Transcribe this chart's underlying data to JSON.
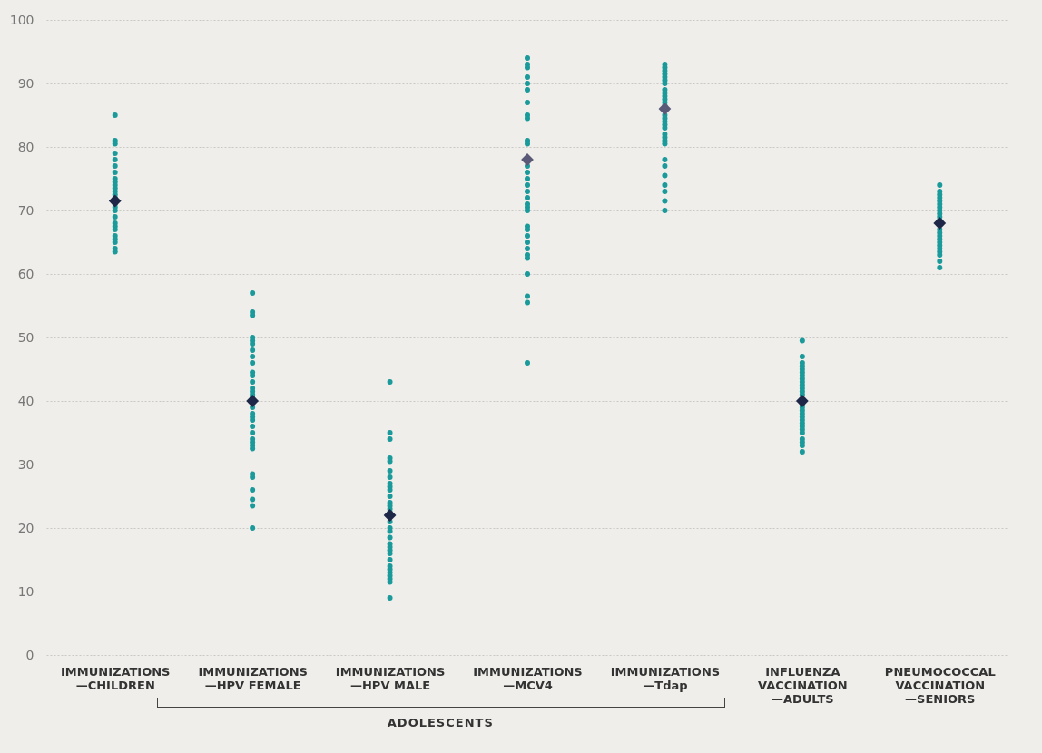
{
  "chart_data": {
    "type": "scatter",
    "categories": [
      "IMMUNIZATIONS —CHILDREN",
      "IMMUNIZATIONS —HPV FEMALE",
      "IMMUNIZATIONS —HPV MALE",
      "IMMUNIZATIONS —MCV4",
      "IMMUNIZATIONS —Tdap",
      "INFLUENZA VACCINATION —ADULTS",
      "PNEUMOCOCCAL VACCINATION —SENIORS"
    ],
    "series": [
      {
        "type": "scatter",
        "marker": "circle",
        "color": "#1a9a9a",
        "x": [
          "IMMUNIZATIONS —CHILDREN",
          "IMMUNIZATIONS —CHILDREN",
          "IMMUNIZATIONS —CHILDREN",
          "IMMUNIZATIONS —CHILDREN",
          "IMMUNIZATIONS —CHILDREN",
          "IMMUNIZATIONS —CHILDREN",
          "IMMUNIZATIONS —CHILDREN",
          "IMMUNIZATIONS —CHILDREN",
          "IMMUNIZATIONS —CHILDREN",
          "IMMUNIZATIONS —CHILDREN",
          "IMMUNIZATIONS —CHILDREN",
          "IMMUNIZATIONS —CHILDREN",
          "IMMUNIZATIONS —CHILDREN",
          "IMMUNIZATIONS —CHILDREN",
          "IMMUNIZATIONS —CHILDREN",
          "IMMUNIZATIONS —CHILDREN",
          "IMMUNIZATIONS —CHILDREN",
          "IMMUNIZATIONS —CHILDREN",
          "IMMUNIZATIONS —CHILDREN",
          "IMMUNIZATIONS —CHILDREN",
          "IMMUNIZATIONS —CHILDREN",
          "IMMUNIZATIONS —CHILDREN",
          "IMMUNIZATIONS —CHILDREN",
          "IMMUNIZATIONS —CHILDREN",
          "IMMUNIZATIONS —CHILDREN",
          "IMMUNIZATIONS —CHILDREN",
          "IMMUNIZATIONS —HPV FEMALE",
          "IMMUNIZATIONS —HPV FEMALE",
          "IMMUNIZATIONS —HPV FEMALE",
          "IMMUNIZATIONS —HPV FEMALE",
          "IMMUNIZATIONS —HPV FEMALE",
          "IMMUNIZATIONS —HPV FEMALE",
          "IMMUNIZATIONS —HPV FEMALE",
          "IMMUNIZATIONS —HPV FEMALE",
          "IMMUNIZATIONS —HPV FEMALE",
          "IMMUNIZATIONS —HPV FEMALE",
          "IMMUNIZATIONS —HPV FEMALE",
          "IMMUNIZATIONS —HPV FEMALE",
          "IMMUNIZATIONS —HPV FEMALE",
          "IMMUNIZATIONS —HPV FEMALE",
          "IMMUNIZATIONS —HPV FEMALE",
          "IMMUNIZATIONS —HPV FEMALE",
          "IMMUNIZATIONS —HPV FEMALE",
          "IMMUNIZATIONS —HPV FEMALE",
          "IMMUNIZATIONS —HPV FEMALE",
          "IMMUNIZATIONS —HPV FEMALE",
          "IMMUNIZATIONS —HPV FEMALE",
          "IMMUNIZATIONS —HPV FEMALE",
          "IMMUNIZATIONS —HPV FEMALE",
          "IMMUNIZATIONS —HPV FEMALE",
          "IMMUNIZATIONS —HPV FEMALE",
          "IMMUNIZATIONS —HPV FEMALE",
          "IMMUNIZATIONS —HPV FEMALE",
          "IMMUNIZATIONS —HPV FEMALE",
          "IMMUNIZATIONS —HPV FEMALE",
          "IMMUNIZATIONS —HPV FEMALE",
          "IMMUNIZATIONS —HPV FEMALE",
          "IMMUNIZATIONS —HPV FEMALE",
          "IMMUNIZATIONS —HPV FEMALE",
          "IMMUNIZATIONS —HPV MALE",
          "IMMUNIZATIONS —HPV MALE",
          "IMMUNIZATIONS —HPV MALE",
          "IMMUNIZATIONS —HPV MALE",
          "IMMUNIZATIONS —HPV MALE",
          "IMMUNIZATIONS —HPV MALE",
          "IMMUNIZATIONS —HPV MALE",
          "IMMUNIZATIONS —HPV MALE",
          "IMMUNIZATIONS —HPV MALE",
          "IMMUNIZATIONS —HPV MALE",
          "IMMUNIZATIONS —HPV MALE",
          "IMMUNIZATIONS —HPV MALE",
          "IMMUNIZATIONS —HPV MALE",
          "IMMUNIZATIONS —HPV MALE",
          "IMMUNIZATIONS —HPV MALE",
          "IMMUNIZATIONS —HPV MALE",
          "IMMUNIZATIONS —HPV MALE",
          "IMMUNIZATIONS —HPV MALE",
          "IMMUNIZATIONS —HPV MALE",
          "IMMUNIZATIONS —HPV MALE",
          "IMMUNIZATIONS —HPV MALE",
          "IMMUNIZATIONS —HPV MALE",
          "IMMUNIZATIONS —HPV MALE",
          "IMMUNIZATIONS —HPV MALE",
          "IMMUNIZATIONS —HPV MALE",
          "IMMUNIZATIONS —HPV MALE",
          "IMMUNIZATIONS —HPV MALE",
          "IMMUNIZATIONS —HPV MALE",
          "IMMUNIZATIONS —HPV MALE",
          "IMMUNIZATIONS —HPV MALE",
          "IMMUNIZATIONS —HPV MALE",
          "IMMUNIZATIONS —MCV4",
          "IMMUNIZATIONS —MCV4",
          "IMMUNIZATIONS —MCV4",
          "IMMUNIZATIONS —MCV4",
          "IMMUNIZATIONS —MCV4",
          "IMMUNIZATIONS —MCV4",
          "IMMUNIZATIONS —MCV4",
          "IMMUNIZATIONS —MCV4",
          "IMMUNIZATIONS —MCV4",
          "IMMUNIZATIONS —MCV4",
          "IMMUNIZATIONS —MCV4",
          "IMMUNIZATIONS —MCV4",
          "IMMUNIZATIONS —MCV4",
          "IMMUNIZATIONS —MCV4",
          "IMMUNIZATIONS —MCV4",
          "IMMUNIZATIONS —MCV4",
          "IMMUNIZATIONS —MCV4",
          "IMMUNIZATIONS —MCV4",
          "IMMUNIZATIONS —MCV4",
          "IMMUNIZATIONS —MCV4",
          "IMMUNIZATIONS —MCV4",
          "IMMUNIZATIONS —MCV4",
          "IMMUNIZATIONS —MCV4",
          "IMMUNIZATIONS —MCV4",
          "IMMUNIZATIONS —MCV4",
          "IMMUNIZATIONS —MCV4",
          "IMMUNIZATIONS —MCV4",
          "IMMUNIZATIONS —MCV4",
          "IMMUNIZATIONS —MCV4",
          "IMMUNIZATIONS —MCV4",
          "IMMUNIZATIONS —MCV4",
          "IMMUNIZATIONS —MCV4",
          "IMMUNIZATIONS —Tdap",
          "IMMUNIZATIONS —Tdap",
          "IMMUNIZATIONS —Tdap",
          "IMMUNIZATIONS —Tdap",
          "IMMUNIZATIONS —Tdap",
          "IMMUNIZATIONS —Tdap",
          "IMMUNIZATIONS —Tdap",
          "IMMUNIZATIONS —Tdap",
          "IMMUNIZATIONS —Tdap",
          "IMMUNIZATIONS —Tdap",
          "IMMUNIZATIONS —Tdap",
          "IMMUNIZATIONS —Tdap",
          "IMMUNIZATIONS —Tdap",
          "IMMUNIZATIONS —Tdap",
          "IMMUNIZATIONS —Tdap",
          "IMMUNIZATIONS —Tdap",
          "IMMUNIZATIONS —Tdap",
          "IMMUNIZATIONS —Tdap",
          "IMMUNIZATIONS —Tdap",
          "IMMUNIZATIONS —Tdap",
          "IMMUNIZATIONS —Tdap",
          "IMMUNIZATIONS —Tdap",
          "IMMUNIZATIONS —Tdap",
          "IMMUNIZATIONS —Tdap",
          "IMMUNIZATIONS —Tdap",
          "IMMUNIZATIONS —Tdap",
          "IMMUNIZATIONS —Tdap",
          "IMMUNIZATIONS —Tdap",
          "IMMUNIZATIONS —Tdap",
          "INFLUENZA VACCINATION —ADULTS",
          "INFLUENZA VACCINATION —ADULTS",
          "INFLUENZA VACCINATION —ADULTS",
          "INFLUENZA VACCINATION —ADULTS",
          "INFLUENZA VACCINATION —ADULTS",
          "INFLUENZA VACCINATION —ADULTS",
          "INFLUENZA VACCINATION —ADULTS",
          "INFLUENZA VACCINATION —ADULTS",
          "INFLUENZA VACCINATION —ADULTS",
          "INFLUENZA VACCINATION —ADULTS",
          "INFLUENZA VACCINATION —ADULTS",
          "INFLUENZA VACCINATION —ADULTS",
          "INFLUENZA VACCINATION —ADULTS",
          "INFLUENZA VACCINATION —ADULTS",
          "INFLUENZA VACCINATION —ADULTS",
          "INFLUENZA VACCINATION —ADULTS",
          "INFLUENZA VACCINATION —ADULTS",
          "INFLUENZA VACCINATION —ADULTS",
          "INFLUENZA VACCINATION —ADULTS",
          "INFLUENZA VACCINATION —ADULTS",
          "INFLUENZA VACCINATION —ADULTS",
          "INFLUENZA VACCINATION —ADULTS",
          "INFLUENZA VACCINATION —ADULTS",
          "INFLUENZA VACCINATION —ADULTS",
          "INFLUENZA VACCINATION —ADULTS",
          "INFLUENZA VACCINATION —ADULTS",
          "INFLUENZA VACCINATION —ADULTS",
          "INFLUENZA VACCINATION —ADULTS",
          "PNEUMOCOCCAL VACCINATION —SENIORS",
          "PNEUMOCOCCAL VACCINATION —SENIORS",
          "PNEUMOCOCCAL VACCINATION —SENIORS",
          "PNEUMOCOCCAL VACCINATION —SENIORS",
          "PNEUMOCOCCAL VACCINATION —SENIORS",
          "PNEUMOCOCCAL VACCINATION —SENIORS",
          "PNEUMOCOCCAL VACCINATION —SENIORS",
          "PNEUMOCOCCAL VACCINATION —SENIORS",
          "PNEUMOCOCCAL VACCINATION —SENIORS",
          "PNEUMOCOCCAL VACCINATION —SENIORS",
          "PNEUMOCOCCAL VACCINATION —SENIORS",
          "PNEUMOCOCCAL VACCINATION —SENIORS",
          "PNEUMOCOCCAL VACCINATION —SENIORS",
          "PNEUMOCOCCAL VACCINATION —SENIORS",
          "PNEUMOCOCCAL VACCINATION —SENIORS",
          "PNEUMOCOCCAL VACCINATION —SENIORS",
          "PNEUMOCOCCAL VACCINATION —SENIORS",
          "PNEUMOCOCCAL VACCINATION —SENIORS",
          "PNEUMOCOCCAL VACCINATION —SENIORS",
          "PNEUMOCOCCAL VACCINATION —SENIORS",
          "PNEUMOCOCCAL VACCINATION —SENIORS",
          "PNEUMOCOCCAL VACCINATION —SENIORS",
          "PNEUMOCOCCAL VACCINATION —SENIORS"
        ],
        "values": [
          85,
          81,
          80.5,
          79,
          78,
          77,
          76,
          75,
          74.5,
          74,
          73.5,
          73,
          72.5,
          72,
          71,
          70.5,
          70,
          69,
          68,
          67.5,
          67,
          66,
          65.5,
          65,
          64,
          63.5,
          57,
          54,
          53.5,
          50,
          49.5,
          49,
          48,
          47,
          46,
          44.5,
          44,
          43,
          42,
          41.5,
          41,
          40.5,
          null,
          39,
          38,
          37.5,
          37,
          36,
          35,
          34,
          33.5,
          33,
          32.5,
          28.5,
          28,
          26,
          24.5,
          23.5,
          20,
          43,
          35,
          34,
          31,
          30.5,
          29,
          28,
          27,
          26.5,
          26,
          25,
          24,
          23.5,
          23,
          22.5,
          21,
          20,
          19.5,
          18.5,
          17.5,
          17,
          16.5,
          16,
          15,
          14,
          13.5,
          13,
          12.5,
          12,
          11.5,
          9,
          94,
          93,
          92.5,
          91,
          90,
          89,
          87,
          85,
          84.5,
          81,
          80.5,
          null,
          77,
          76,
          75,
          74,
          73,
          72,
          71,
          70.5,
          70,
          67.5,
          67,
          66,
          65,
          64,
          63,
          62.5,
          60,
          56.5,
          55.5,
          46,
          93,
          92.5,
          92,
          91.5,
          91,
          90.5,
          90,
          89,
          88.5,
          88,
          87.5,
          87,
          86.5,
          85,
          84.5,
          84,
          83.5,
          83,
          82,
          81.5,
          81,
          80.5,
          78,
          77,
          75.5,
          74,
          73,
          71.5,
          70,
          49.5,
          47,
          46,
          45.5,
          45,
          44.5,
          44,
          43.5,
          43,
          42.5,
          42,
          41.5,
          41,
          null,
          39.5,
          39,
          38.5,
          38,
          37.5,
          37,
          36.5,
          36,
          35.5,
          35,
          34,
          33.5,
          33,
          32,
          74,
          73,
          72.5,
          72,
          71.5,
          71,
          70.5,
          70,
          69.5,
          69,
          68.5,
          null,
          67,
          66.5,
          66,
          65.5,
          65,
          64.5,
          64,
          63.5,
          63,
          62,
          61
        ]
      },
      {
        "type": "scatter",
        "marker": "diamond",
        "colors": [
          "#1f2748",
          "#1f2748",
          "#1f2748",
          "#5a5a78",
          "#5a5a78",
          "#1f2748",
          "#1f2748"
        ],
        "x": [
          "IMMUNIZATIONS —CHILDREN",
          "IMMUNIZATIONS —HPV FEMALE",
          "IMMUNIZATIONS —HPV MALE",
          "IMMUNIZATIONS —MCV4",
          "IMMUNIZATIONS —Tdap",
          "INFLUENZA VACCINATION —ADULTS",
          "PNEUMOCOCCAL VACCINATION —SENIORS"
        ],
        "values": [
          71.5,
          40,
          22,
          78,
          86,
          40,
          68
        ]
      }
    ],
    "ylim": [
      0,
      100
    ],
    "yticks": [
      0,
      10,
      20,
      30,
      40,
      50,
      60,
      70,
      80,
      90,
      100
    ],
    "grid": "y",
    "annotations": [
      "ADOLESCENTS"
    ]
  }
}
